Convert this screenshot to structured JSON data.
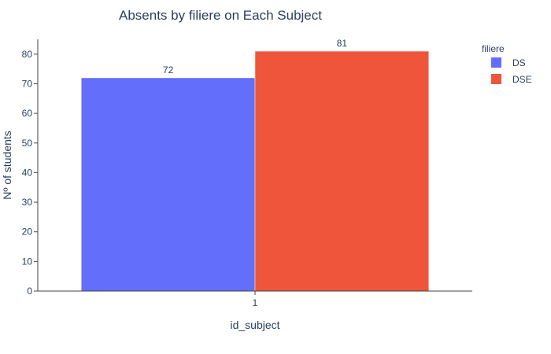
{
  "chart_data": {
    "type": "bar",
    "title": "Absents by filiere on Each Subject",
    "xlabel": "id_subject",
    "ylabel": "Nº of students",
    "categories": [
      "1"
    ],
    "series": [
      {
        "name": "DS",
        "values": [
          72
        ],
        "color": "#636efa"
      },
      {
        "name": "DSE",
        "values": [
          81
        ],
        "color": "#ef553b"
      }
    ],
    "ylim": [
      0,
      85
    ],
    "yticks": [
      0,
      10,
      20,
      30,
      40,
      50,
      60,
      70,
      80
    ],
    "grid": false,
    "legend": {
      "title": "filiere",
      "placement": "top-right"
    },
    "barmode": "group"
  }
}
